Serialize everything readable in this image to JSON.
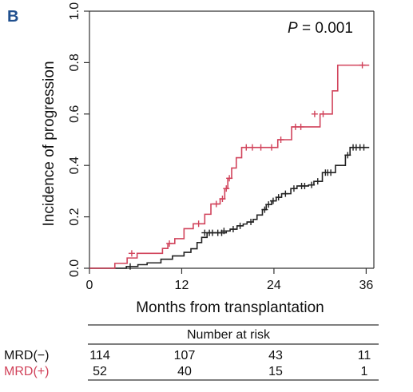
{
  "panel_label": "B",
  "pvalue": {
    "symbol": "P",
    "text": "= 0.001"
  },
  "chart_data": {
    "type": "line",
    "subtype": "step",
    "xlabel": "Months from transplantation",
    "ylabel": "Incidence of progression",
    "xlim": [
      0,
      37
    ],
    "ylim": [
      0,
      1.0
    ],
    "x_ticks": [
      0,
      12,
      24,
      36
    ],
    "y_ticks": [
      0.0,
      0.2,
      0.4,
      0.6,
      0.8,
      1.0
    ],
    "y_tick_labels": [
      "0.0",
      "0.2",
      "0.4",
      "0.6",
      "0.8",
      "1.0"
    ],
    "grid": false,
    "annotation": "P = 0.001",
    "series": [
      {
        "name": "MRD(−)",
        "color": "#222222",
        "steps": [
          [
            0,
            0
          ],
          [
            4.8,
            0.007
          ],
          [
            6.3,
            0.014
          ],
          [
            7.5,
            0.021
          ],
          [
            9.3,
            0.035
          ],
          [
            10.8,
            0.048
          ],
          [
            12.3,
            0.062
          ],
          [
            13.2,
            0.076
          ],
          [
            14.0,
            0.1
          ],
          [
            14.6,
            0.12
          ],
          [
            15.3,
            0.138
          ],
          [
            16.5,
            0.138
          ],
          [
            17.8,
            0.145
          ],
          [
            18.3,
            0.152
          ],
          [
            19.2,
            0.165
          ],
          [
            20.0,
            0.172
          ],
          [
            20.5,
            0.18
          ],
          [
            21.3,
            0.19
          ],
          [
            21.8,
            0.207
          ],
          [
            22.5,
            0.228
          ],
          [
            23.0,
            0.248
          ],
          [
            23.7,
            0.262
          ],
          [
            24.3,
            0.276
          ],
          [
            25.0,
            0.29
          ],
          [
            26.2,
            0.31
          ],
          [
            27.0,
            0.32
          ],
          [
            28.5,
            0.324
          ],
          [
            29.2,
            0.338
          ],
          [
            30.3,
            0.372
          ],
          [
            32.0,
            0.4
          ],
          [
            33.3,
            0.44
          ],
          [
            33.9,
            0.47
          ],
          [
            36.0,
            0.47
          ]
        ],
        "censor_marks": [
          [
            5.3,
            0.007
          ],
          [
            15.0,
            0.138
          ],
          [
            15.6,
            0.138
          ],
          [
            16.0,
            0.138
          ],
          [
            16.7,
            0.138
          ],
          [
            17.2,
            0.138
          ],
          [
            17.5,
            0.145
          ],
          [
            18.7,
            0.152
          ],
          [
            19.6,
            0.165
          ],
          [
            21.0,
            0.18
          ],
          [
            22.8,
            0.228
          ],
          [
            23.3,
            0.248
          ],
          [
            23.9,
            0.262
          ],
          [
            24.6,
            0.276
          ],
          [
            25.5,
            0.29
          ],
          [
            26.6,
            0.31
          ],
          [
            27.6,
            0.32
          ],
          [
            28.0,
            0.32
          ],
          [
            28.9,
            0.324
          ],
          [
            29.7,
            0.338
          ],
          [
            30.7,
            0.372
          ],
          [
            31.0,
            0.372
          ],
          [
            31.4,
            0.372
          ],
          [
            33.6,
            0.44
          ],
          [
            34.3,
            0.47
          ],
          [
            34.7,
            0.47
          ],
          [
            35.2,
            0.47
          ],
          [
            35.7,
            0.47
          ]
        ]
      },
      {
        "name": "MRD(+)",
        "color": "#d1435b",
        "steps": [
          [
            0,
            0
          ],
          [
            3.3,
            0.019
          ],
          [
            4.9,
            0.04
          ],
          [
            6.2,
            0.058
          ],
          [
            9.5,
            0.077
          ],
          [
            10.2,
            0.096
          ],
          [
            11.1,
            0.115
          ],
          [
            12.3,
            0.154
          ],
          [
            13.5,
            0.173
          ],
          [
            15.0,
            0.21
          ],
          [
            15.8,
            0.25
          ],
          [
            17.0,
            0.27
          ],
          [
            17.6,
            0.31
          ],
          [
            18.0,
            0.35
          ],
          [
            18.5,
            0.39
          ],
          [
            19.1,
            0.43
          ],
          [
            19.8,
            0.47
          ],
          [
            23.3,
            0.47
          ],
          [
            24.5,
            0.5
          ],
          [
            25.6,
            0.5
          ],
          [
            26.3,
            0.55
          ],
          [
            28.7,
            0.55
          ],
          [
            30.0,
            0.6
          ],
          [
            30.9,
            0.6
          ],
          [
            31.6,
            0.69
          ],
          [
            32.3,
            0.79
          ],
          [
            36.0,
            0.79
          ]
        ],
        "censor_marks": [
          [
            5.5,
            0.058
          ],
          [
            10.4,
            0.096
          ],
          [
            14.2,
            0.173
          ],
          [
            16.5,
            0.25
          ],
          [
            17.3,
            0.27
          ],
          [
            17.8,
            0.31
          ],
          [
            18.2,
            0.35
          ],
          [
            20.4,
            0.47
          ],
          [
            21.2,
            0.47
          ],
          [
            22.3,
            0.47
          ],
          [
            23.7,
            0.47
          ],
          [
            24.9,
            0.5
          ],
          [
            26.8,
            0.55
          ],
          [
            27.5,
            0.55
          ],
          [
            29.3,
            0.6
          ],
          [
            30.4,
            0.6
          ],
          [
            35.5,
            0.79
          ]
        ]
      }
    ]
  },
  "risk_table": {
    "title": "Number at risk",
    "rows": [
      {
        "label": "MRD(−)",
        "color": "#222222",
        "values": [
          "114",
          "107",
          "43",
          "11"
        ]
      },
      {
        "label": "MRD(+)",
        "color": "#d1435b",
        "values": [
          "52",
          "40",
          "15",
          "1"
        ]
      }
    ]
  }
}
